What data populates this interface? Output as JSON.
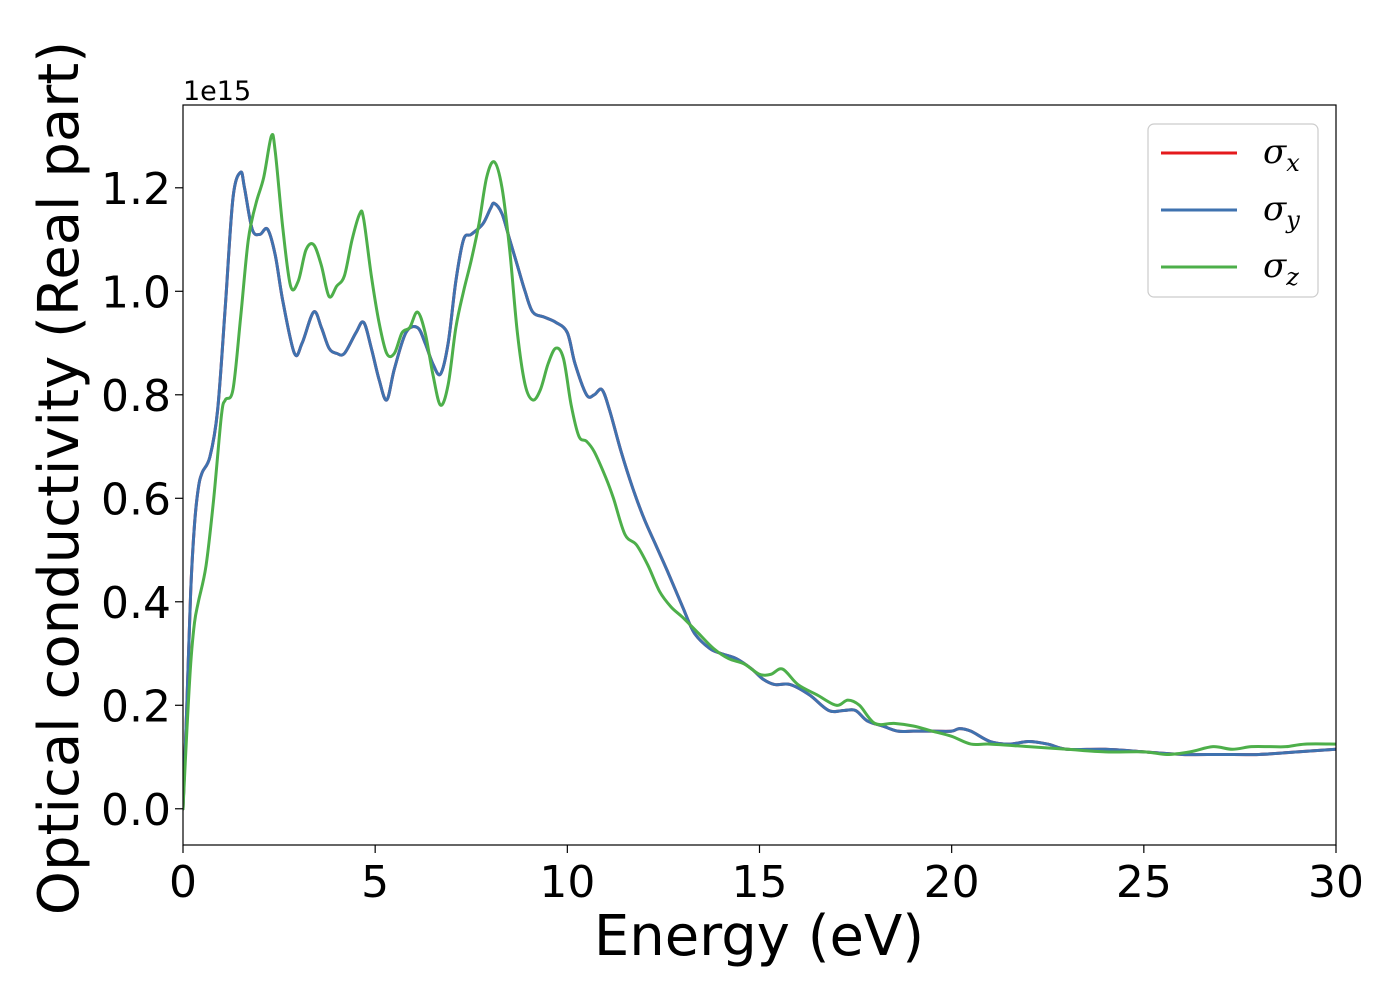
{
  "chart_data": {
    "type": "line",
    "title": "",
    "xlabel": "Energy (eV)",
    "ylabel": "Optical conductivity (Real part)",
    "y_offset_text": "1e15",
    "xlim": [
      0,
      30
    ],
    "ylim": [
      -0.07,
      1.36
    ],
    "x_ticks": [
      0,
      5,
      10,
      15,
      20,
      25,
      30
    ],
    "x_tick_labels": [
      "0",
      "5",
      "10",
      "15",
      "20",
      "25",
      "30"
    ],
    "y_ticks": [
      0.0,
      0.2,
      0.4,
      0.6,
      0.8,
      1.0,
      1.2
    ],
    "y_tick_labels": [
      "0.0",
      "0.2",
      "0.4",
      "0.6",
      "0.8",
      "1.0",
      "1.2"
    ],
    "grid": false,
    "legend_position": "top-right",
    "series": [
      {
        "name": "σx",
        "name_base": "σ",
        "name_sub": "x",
        "color": "#e41a1c",
        "x": [
          0,
          0.1,
          0.2,
          0.3,
          0.4,
          0.5,
          0.7,
          0.9,
          1.1,
          1.3,
          1.5,
          1.6,
          1.8,
          2.0,
          2.2,
          2.4,
          2.6,
          2.9,
          3.1,
          3.4,
          3.6,
          3.8,
          4.0,
          4.2,
          4.5,
          4.7,
          4.9,
          5.1,
          5.3,
          5.5,
          5.8,
          6.1,
          6.3,
          6.5,
          6.7,
          6.9,
          7.1,
          7.3,
          7.5,
          7.8,
          8.0,
          8.1,
          8.3,
          8.5,
          8.7,
          8.9,
          9.1,
          9.4,
          9.7,
          10.0,
          10.2,
          10.5,
          10.7,
          10.9,
          11.1,
          11.4,
          11.7,
          12.0,
          12.3,
          12.6,
          13.0,
          13.3,
          13.7,
          14.0,
          14.4,
          14.8,
          15.1,
          15.4,
          15.8,
          16.3,
          16.8,
          17.2,
          17.5,
          17.8,
          18.2,
          18.6,
          19.0,
          19.5,
          20.0,
          20.2,
          20.5,
          21.0,
          21.5,
          22.0,
          22.5,
          23.0,
          24.0,
          25.0,
          26.0,
          27.0,
          28.0,
          29.0,
          30.0
        ],
        "y": [
          0.0,
          0.2,
          0.42,
          0.55,
          0.62,
          0.65,
          0.68,
          0.77,
          0.97,
          1.18,
          1.23,
          1.2,
          1.12,
          1.11,
          1.12,
          1.07,
          0.98,
          0.88,
          0.9,
          0.96,
          0.93,
          0.89,
          0.88,
          0.88,
          0.92,
          0.94,
          0.89,
          0.83,
          0.79,
          0.85,
          0.92,
          0.93,
          0.9,
          0.86,
          0.84,
          0.9,
          1.02,
          1.1,
          1.11,
          1.13,
          1.16,
          1.17,
          1.15,
          1.1,
          1.05,
          1.0,
          0.96,
          0.95,
          0.94,
          0.92,
          0.86,
          0.8,
          0.8,
          0.81,
          0.77,
          0.69,
          0.62,
          0.56,
          0.51,
          0.46,
          0.39,
          0.34,
          0.31,
          0.3,
          0.29,
          0.27,
          0.25,
          0.24,
          0.24,
          0.22,
          0.19,
          0.19,
          0.19,
          0.17,
          0.16,
          0.15,
          0.15,
          0.15,
          0.15,
          0.155,
          0.15,
          0.13,
          0.125,
          0.13,
          0.125,
          0.115,
          0.115,
          0.11,
          0.105,
          0.105,
          0.105,
          0.11,
          0.115
        ]
      },
      {
        "name": "σy",
        "name_base": "σ",
        "name_sub": "y",
        "color": "#3f72af",
        "x": [
          0,
          0.1,
          0.2,
          0.3,
          0.4,
          0.5,
          0.7,
          0.9,
          1.1,
          1.3,
          1.5,
          1.6,
          1.8,
          2.0,
          2.2,
          2.4,
          2.6,
          2.9,
          3.1,
          3.4,
          3.6,
          3.8,
          4.0,
          4.2,
          4.5,
          4.7,
          4.9,
          5.1,
          5.3,
          5.5,
          5.8,
          6.1,
          6.3,
          6.5,
          6.7,
          6.9,
          7.1,
          7.3,
          7.5,
          7.8,
          8.0,
          8.1,
          8.3,
          8.5,
          8.7,
          8.9,
          9.1,
          9.4,
          9.7,
          10.0,
          10.2,
          10.5,
          10.7,
          10.9,
          11.1,
          11.4,
          11.7,
          12.0,
          12.3,
          12.6,
          13.0,
          13.3,
          13.7,
          14.0,
          14.4,
          14.8,
          15.1,
          15.4,
          15.8,
          16.3,
          16.8,
          17.2,
          17.5,
          17.8,
          18.2,
          18.6,
          19.0,
          19.5,
          20.0,
          20.2,
          20.5,
          21.0,
          21.5,
          22.0,
          22.5,
          23.0,
          24.0,
          25.0,
          26.0,
          27.0,
          28.0,
          29.0,
          30.0
        ],
        "y": [
          0.0,
          0.2,
          0.42,
          0.55,
          0.62,
          0.65,
          0.68,
          0.77,
          0.97,
          1.18,
          1.23,
          1.2,
          1.12,
          1.11,
          1.12,
          1.07,
          0.98,
          0.88,
          0.9,
          0.96,
          0.93,
          0.89,
          0.88,
          0.88,
          0.92,
          0.94,
          0.89,
          0.83,
          0.79,
          0.85,
          0.92,
          0.93,
          0.9,
          0.86,
          0.84,
          0.9,
          1.02,
          1.1,
          1.11,
          1.13,
          1.16,
          1.17,
          1.15,
          1.1,
          1.05,
          1.0,
          0.96,
          0.95,
          0.94,
          0.92,
          0.86,
          0.8,
          0.8,
          0.81,
          0.77,
          0.69,
          0.62,
          0.56,
          0.51,
          0.46,
          0.39,
          0.34,
          0.31,
          0.3,
          0.29,
          0.27,
          0.25,
          0.24,
          0.24,
          0.22,
          0.19,
          0.19,
          0.19,
          0.17,
          0.16,
          0.15,
          0.15,
          0.15,
          0.15,
          0.155,
          0.15,
          0.13,
          0.125,
          0.13,
          0.125,
          0.115,
          0.115,
          0.11,
          0.105,
          0.105,
          0.105,
          0.11,
          0.115
        ]
      },
      {
        "name": "σz",
        "name_base": "σ",
        "name_sub": "z",
        "color": "#4daf4a",
        "x": [
          0,
          0.1,
          0.2,
          0.3,
          0.4,
          0.6,
          0.8,
          1.0,
          1.1,
          1.3,
          1.5,
          1.7,
          1.9,
          2.1,
          2.3,
          2.4,
          2.6,
          2.8,
          3.0,
          3.2,
          3.4,
          3.6,
          3.8,
          4.0,
          4.2,
          4.4,
          4.6,
          4.7,
          4.9,
          5.1,
          5.3,
          5.5,
          5.7,
          5.9,
          6.1,
          6.3,
          6.5,
          6.7,
          6.9,
          7.1,
          7.3,
          7.5,
          7.7,
          7.9,
          8.1,
          8.3,
          8.5,
          8.7,
          8.9,
          9.1,
          9.3,
          9.5,
          9.7,
          9.9,
          10.1,
          10.3,
          10.5,
          10.7,
          11.0,
          11.2,
          11.5,
          11.8,
          12.1,
          12.4,
          12.7,
          13.0,
          13.4,
          13.8,
          14.2,
          14.6,
          15.0,
          15.3,
          15.6,
          16.0,
          16.5,
          17.0,
          17.3,
          17.6,
          18.0,
          18.5,
          19.0,
          19.5,
          20.0,
          20.5,
          21.0,
          22.0,
          23.0,
          24.0,
          25.0,
          25.6,
          26.2,
          26.8,
          27.3,
          27.8,
          28.3,
          28.7,
          29.2,
          30.0
        ],
        "y": [
          0.0,
          0.15,
          0.28,
          0.36,
          0.4,
          0.47,
          0.6,
          0.76,
          0.79,
          0.81,
          0.95,
          1.1,
          1.17,
          1.22,
          1.3,
          1.27,
          1.12,
          1.01,
          1.02,
          1.08,
          1.09,
          1.05,
          0.99,
          1.01,
          1.03,
          1.1,
          1.15,
          1.14,
          1.03,
          0.94,
          0.88,
          0.88,
          0.92,
          0.93,
          0.96,
          0.92,
          0.84,
          0.78,
          0.82,
          0.93,
          1.0,
          1.06,
          1.13,
          1.22,
          1.25,
          1.2,
          1.08,
          0.92,
          0.82,
          0.79,
          0.81,
          0.86,
          0.89,
          0.87,
          0.78,
          0.72,
          0.71,
          0.69,
          0.64,
          0.6,
          0.53,
          0.51,
          0.47,
          0.42,
          0.39,
          0.37,
          0.34,
          0.31,
          0.29,
          0.28,
          0.26,
          0.26,
          0.27,
          0.24,
          0.22,
          0.2,
          0.21,
          0.2,
          0.165,
          0.165,
          0.16,
          0.15,
          0.14,
          0.125,
          0.125,
          0.12,
          0.115,
          0.11,
          0.11,
          0.105,
          0.11,
          0.12,
          0.115,
          0.12,
          0.12,
          0.12,
          0.125,
          0.125
        ]
      }
    ]
  }
}
